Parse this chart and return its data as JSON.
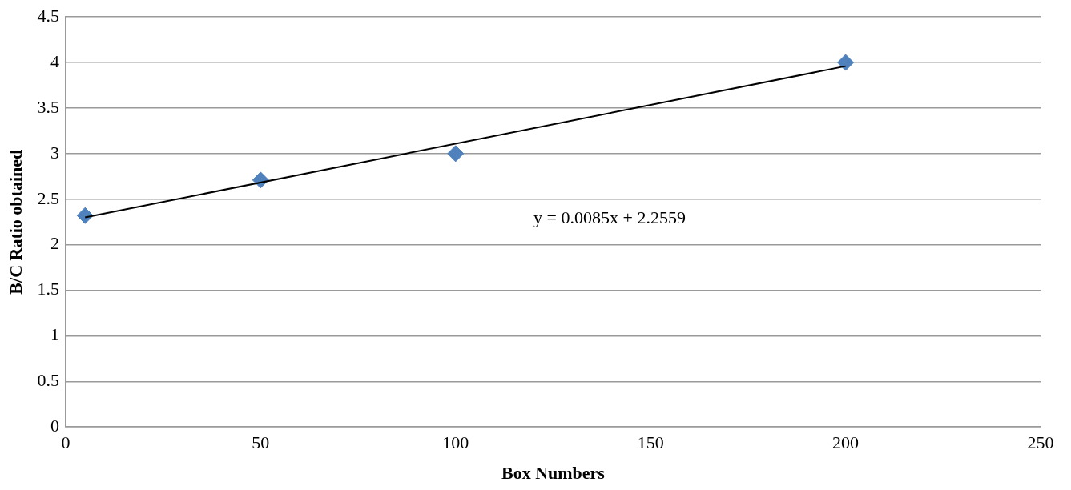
{
  "chart_data": {
    "type": "scatter",
    "xlabel": "Box Numbers",
    "ylabel": "B/C Ratio obtained",
    "series": [
      {
        "type": "scatter",
        "color": "#4f81bd",
        "x": [
          5,
          50,
          100,
          200
        ],
        "values": [
          2.32,
          2.71,
          3.0,
          4.0
        ]
      },
      {
        "type": "line",
        "color": "#000000",
        "marker": "none",
        "x": [
          5,
          200
        ],
        "values": [
          2.3,
          3.96
        ]
      }
    ],
    "xlim": [
      0,
      250
    ],
    "xticks": [
      0,
      50,
      100,
      150,
      200,
      250
    ],
    "ylim": [
      0,
      4.5
    ],
    "yticks": [
      0,
      0.5,
      1,
      1.5,
      2,
      2.5,
      3,
      3.5,
      4,
      4.5
    ],
    "grid": "y",
    "legend": false,
    "marker": "diamond",
    "line_style": "solid",
    "annotations": [
      "y = 0.0085x + 2.2559"
    ]
  }
}
